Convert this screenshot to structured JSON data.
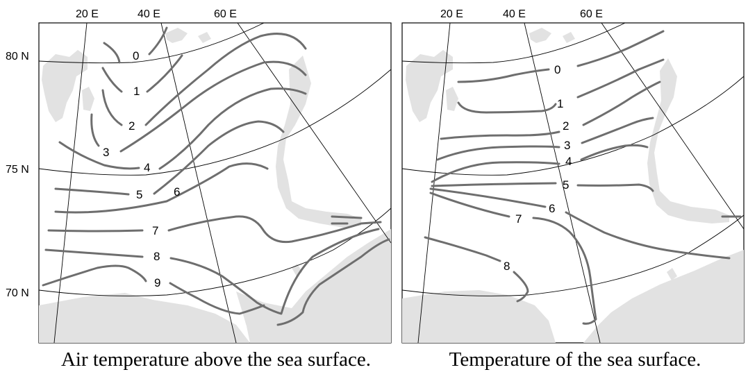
{
  "panels": [
    {
      "caption": "Air temperature above the sea surface.",
      "longitude_labels": [
        "20 E",
        "40 E",
        "60 E"
      ],
      "latitude_labels": [
        "80 N",
        "75 N",
        "70 N"
      ],
      "isotherm_labels": [
        "0",
        "1",
        "2",
        "3",
        "4",
        "5",
        "6",
        "7",
        "8",
        "9"
      ]
    },
    {
      "caption": "Temperature of the sea surface.",
      "longitude_labels": [
        "20 E",
        "40 E",
        "60 E"
      ],
      "isotherm_labels": [
        "0",
        "1",
        "2",
        "3",
        "4",
        "5",
        "6",
        "7",
        "8"
      ]
    }
  ],
  "colors": {
    "land": "#e2e2e2",
    "isotherm": "#6e6e6e",
    "grid": "#000000",
    "background": "#ffffff"
  }
}
